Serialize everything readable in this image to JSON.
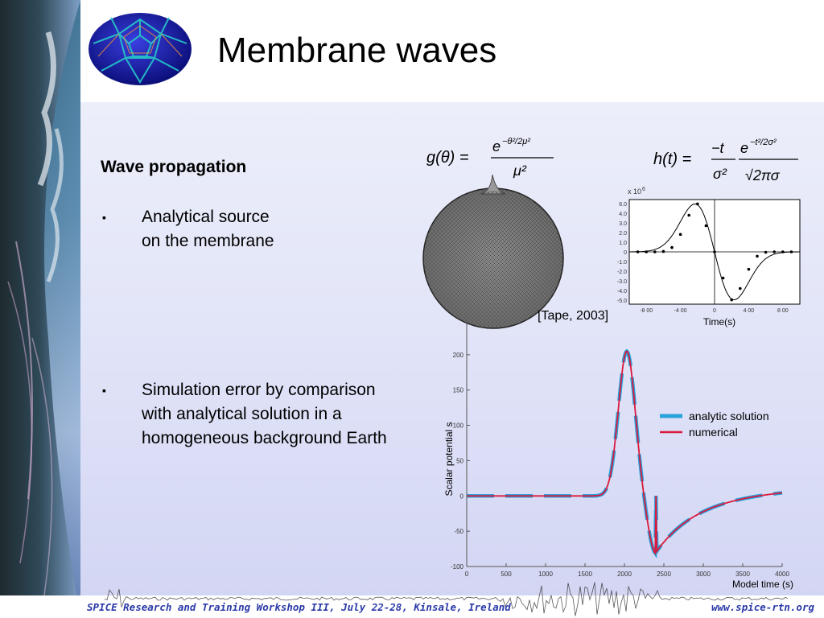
{
  "slide": {
    "title": "Membrane waves",
    "subheading": "Wave propagation",
    "bullet_symbol": "▪",
    "bullets": [
      {
        "lines": [
          "Analytical source",
          "on the membrane"
        ]
      },
      {
        "lines": [
          "Simulation error by comparison",
          "with analytical solution in a",
          "homogeneous background Earth"
        ]
      }
    ],
    "citation": "[Tape, 2003]"
  },
  "equations": {
    "g": {
      "lhs": "g(θ) =",
      "num": "e",
      "num_exp": "−θ²/2μ²",
      "den": "μ²"
    },
    "h": {
      "lhs": "h(t) =",
      "num": "−t",
      "den": "σ²",
      "exp_base": "e",
      "exp_exp": "−t²/2σ²",
      "den2": "√2πσ"
    }
  },
  "footer": {
    "left": "SPICE Research and Training Workshop III, July 22-28, Kinsale, Ireland",
    "right": "www.spice-rtn.org"
  },
  "colors": {
    "analytic": "#2aa3dc",
    "numerical": "#d9193d",
    "footer_text": "#2b3aa8"
  },
  "chart_data": [
    {
      "type": "line",
      "x": [
        -900,
        -800,
        -700,
        -600,
        -500,
        -400,
        -300,
        -200,
        -100,
        0,
        100,
        200,
        300,
        400,
        500,
        600,
        700,
        800,
        900
      ],
      "series": [
        {
          "values": [
            0,
            0,
            0,
            0.05,
            0.5,
            2.0,
            4.2,
            5.5,
            3.0,
            0,
            -3.0,
            -5.5,
            -4.2,
            -2.0,
            -0.5,
            -0.05,
            0,
            0,
            0
          ]
        }
      ],
      "ylim": [
        -6,
        6
      ],
      "xlim": [
        -1000,
        1000
      ],
      "yticks": [
        "6.0",
        "4.0",
        "3.0",
        "2.0",
        "1.0",
        "0",
        "-1.0",
        "-2.0",
        "-3.0",
        "-4.0",
        "-5.0"
      ],
      "xticks": [
        "-8 00",
        "-4 00",
        "0",
        "4 00",
        "8 00"
      ],
      "multiplier": "x 10",
      "multiplier_exp": "6",
      "xlabel": "Time(s)"
    },
    {
      "type": "line",
      "x": [
        0,
        1400,
        1550,
        1700,
        1800,
        1900,
        2000,
        2100,
        2200,
        2300,
        2400,
        2500,
        2700,
        3000,
        3500,
        4000
      ],
      "series": [
        {
          "name": "analytic solution",
          "values": [
            0,
            2,
            10,
            40,
            100,
            170,
            205,
            150,
            50,
            -40,
            -80,
            -70,
            -40,
            -15,
            0,
            8
          ]
        },
        {
          "name": "numerical",
          "values": [
            0,
            2,
            10,
            40,
            100,
            170,
            205,
            150,
            50,
            -40,
            -80,
            -70,
            -40,
            -15,
            0,
            8
          ]
        }
      ],
      "xlim": [
        0,
        4000
      ],
      "ylim": [
        -100,
        250
      ],
      "yticks": [
        "200",
        "150",
        "100",
        "50",
        "0",
        "-50",
        "-100"
      ],
      "xticks": [
        "0",
        "500",
        "1000",
        "1500",
        "2000",
        "2500",
        "3000",
        "3500",
        "4000"
      ],
      "ylabel": "Scalar potential  s",
      "xlabel": "Model time (s)",
      "legend_position": "right"
    }
  ]
}
